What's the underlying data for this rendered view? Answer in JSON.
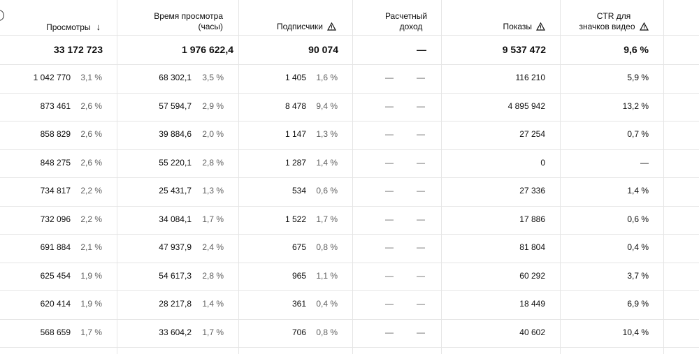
{
  "columns": {
    "views": {
      "label": "Просмотры"
    },
    "watch_time": {
      "line1": "Время просмотра",
      "line2": "(часы)"
    },
    "subscribers": {
      "label": "Подписчики"
    },
    "revenue": {
      "line1": "Расчетный",
      "line2": "доход"
    },
    "impressions": {
      "label": "Показы"
    },
    "ctr": {
      "line1": "CTR для",
      "line2": "значков видео"
    }
  },
  "totals": {
    "views": "33 172 723",
    "watch_time": "1 976 622,4",
    "subscribers": "90 074",
    "revenue": "—",
    "impressions": "9 537 472",
    "ctr": "9,6 %"
  },
  "rows": [
    {
      "views": "1 042 770",
      "views_pct": "3,1 %",
      "watch": "68 302,1",
      "watch_pct": "3,5 %",
      "subs": "1 405",
      "subs_pct": "1,6 %",
      "rev": "—",
      "rev_pct": "—",
      "impr": "116 210",
      "ctr": "5,9 %"
    },
    {
      "views": "873 461",
      "views_pct": "2,6 %",
      "watch": "57 594,7",
      "watch_pct": "2,9 %",
      "subs": "8 478",
      "subs_pct": "9,4 %",
      "rev": "—",
      "rev_pct": "—",
      "impr": "4 895 942",
      "ctr": "13,2 %"
    },
    {
      "views": "858 829",
      "views_pct": "2,6 %",
      "watch": "39 884,6",
      "watch_pct": "2,0 %",
      "subs": "1 147",
      "subs_pct": "1,3 %",
      "rev": "—",
      "rev_pct": "—",
      "impr": "27 254",
      "ctr": "0,7 %"
    },
    {
      "views": "848 275",
      "views_pct": "2,6 %",
      "watch": "55 220,1",
      "watch_pct": "2,8 %",
      "subs": "1 287",
      "subs_pct": "1,4 %",
      "rev": "—",
      "rev_pct": "—",
      "impr": "0",
      "ctr": "—"
    },
    {
      "views": "734 817",
      "views_pct": "2,2 %",
      "watch": "25 431,7",
      "watch_pct": "1,3 %",
      "subs": "534",
      "subs_pct": "0,6 %",
      "rev": "—",
      "rev_pct": "—",
      "impr": "27 336",
      "ctr": "1,4 %"
    },
    {
      "views": "732 096",
      "views_pct": "2,2 %",
      "watch": "34 084,1",
      "watch_pct": "1,7 %",
      "subs": "1 522",
      "subs_pct": "1,7 %",
      "rev": "—",
      "rev_pct": "—",
      "impr": "17 886",
      "ctr": "0,6 %"
    },
    {
      "views": "691 884",
      "views_pct": "2,1 %",
      "watch": "47 937,9",
      "watch_pct": "2,4 %",
      "subs": "675",
      "subs_pct": "0,8 %",
      "rev": "—",
      "rev_pct": "—",
      "impr": "81 804",
      "ctr": "0,4 %"
    },
    {
      "views": "625 454",
      "views_pct": "1,9 %",
      "watch": "54 617,3",
      "watch_pct": "2,8 %",
      "subs": "965",
      "subs_pct": "1,1 %",
      "rev": "—",
      "rev_pct": "—",
      "impr": "60 292",
      "ctr": "3,7 %"
    },
    {
      "views": "620 414",
      "views_pct": "1,9 %",
      "watch": "28 217,8",
      "watch_pct": "1,4 %",
      "subs": "361",
      "subs_pct": "0,4 %",
      "rev": "—",
      "rev_pct": "—",
      "impr": "18 449",
      "ctr": "6,9 %"
    },
    {
      "views": "568 659",
      "views_pct": "1,7 %",
      "watch": "33 604,2",
      "watch_pct": "1,7 %",
      "subs": "706",
      "subs_pct": "0,8 %",
      "rev": "—",
      "rev_pct": "—",
      "impr": "40 602",
      "ctr": "10,4 %"
    }
  ]
}
